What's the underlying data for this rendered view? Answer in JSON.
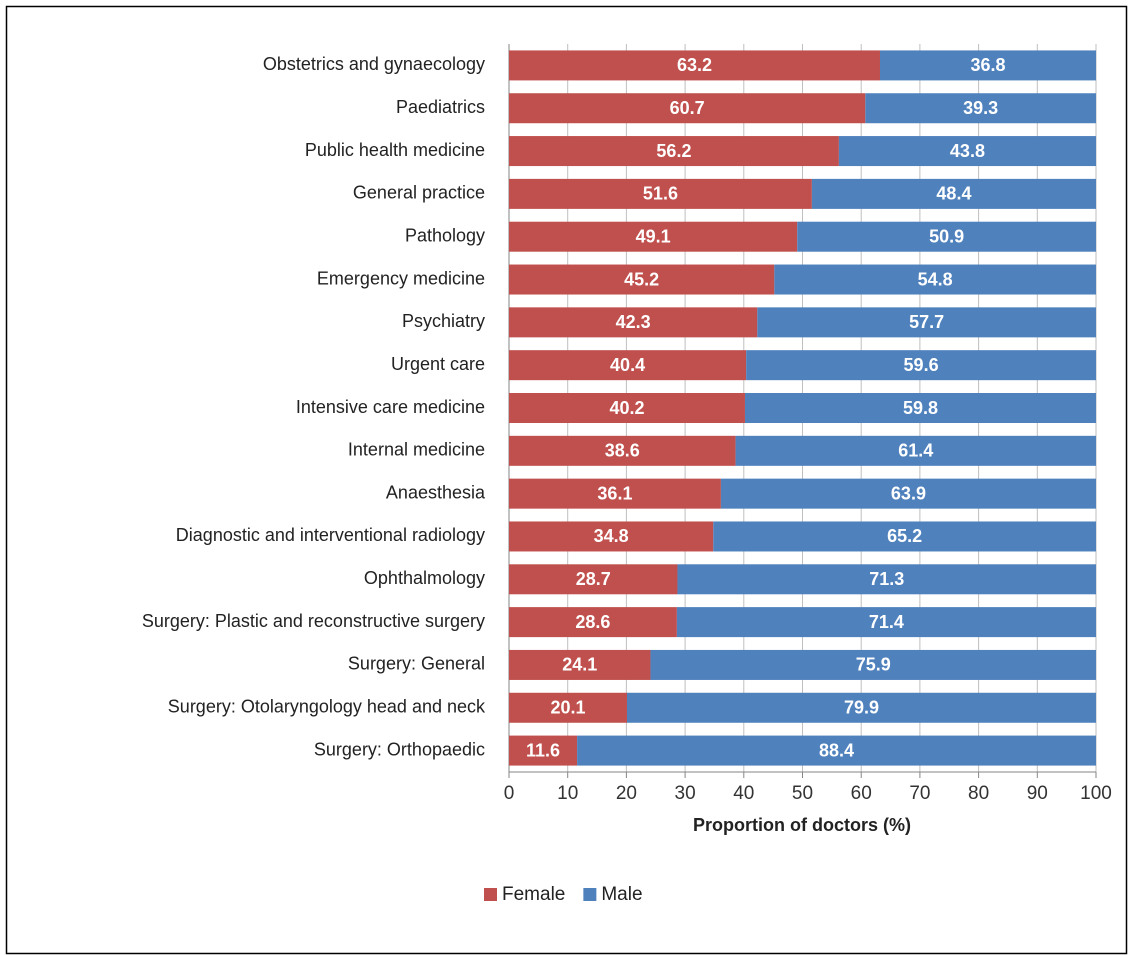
{
  "chart_data": {
    "type": "bar",
    "orientation": "horizontal",
    "stacked": true,
    "data_labels": true,
    "x_label": "Proportion of doctors (%)",
    "categories": [
      "Obstetrics and gynaecology",
      "Paediatrics",
      "Public health medicine",
      "General practice",
      "Pathology",
      "Emergency medicine",
      "Psychiatry",
      "Urgent care",
      "Intensive care medicine",
      "Internal medicine",
      "Anaesthesia",
      "Diagnostic and interventional radiology",
      "Ophthalmology",
      "Surgery: Plastic and reconstructive surgery",
      "Surgery: General",
      "Surgery: Otolaryngology head and neck",
      "Surgery: Orthopaedic"
    ],
    "series": [
      {
        "name": "Female",
        "color": "#c0504d",
        "values": [
          63.2,
          60.7,
          56.2,
          51.6,
          49.1,
          45.2,
          42.3,
          40.4,
          40.2,
          38.6,
          36.1,
          34.8,
          28.7,
          28.6,
          24.1,
          20.1,
          11.6
        ]
      },
      {
        "name": "Male",
        "color": "#4f81bd",
        "values": [
          36.8,
          39.3,
          43.8,
          48.4,
          50.9,
          54.8,
          57.7,
          59.6,
          59.8,
          61.4,
          63.9,
          65.2,
          71.3,
          71.4,
          75.9,
          79.9,
          88.4
        ]
      }
    ],
    "xlim": [
      0,
      100
    ],
    "xticks": [
      0,
      10,
      20,
      30,
      40,
      50,
      60,
      70,
      80,
      90,
      100
    ],
    "grid": true,
    "legend": "bottom"
  }
}
